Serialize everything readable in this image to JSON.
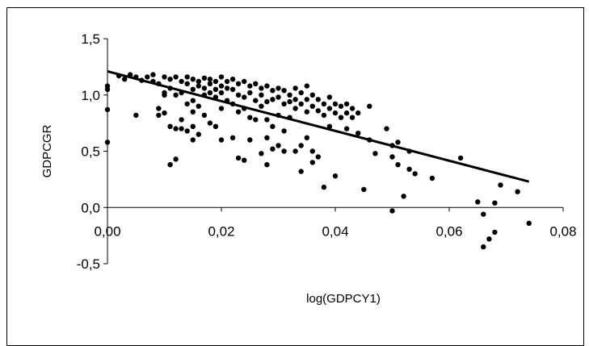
{
  "chart_data": {
    "type": "scatter",
    "title": "",
    "xlabel": "log(GDPCY1)",
    "ylabel": "GDPCGR",
    "xlim": [
      0,
      0.08
    ],
    "ylim": [
      -0.5,
      1.5
    ],
    "x_ticks": [
      "0,00",
      "0,02",
      "0,04",
      "0,06",
      "0,08"
    ],
    "y_ticks": [
      "-0,5",
      "0,0",
      "0,5",
      "1,0",
      "1,5"
    ],
    "grid": false,
    "legend": "none",
    "trendline": {
      "x": [
        0.0,
        0.074
      ],
      "y": [
        1.21,
        0.23
      ]
    },
    "series": [
      {
        "color": "#000000",
        "points": [
          [
            0.0,
            1.08
          ],
          [
            0.0,
            1.05
          ],
          [
            0.0,
            0.87
          ],
          [
            0.0,
            0.58
          ],
          [
            0.002,
            1.17
          ],
          [
            0.003,
            1.14
          ],
          [
            0.004,
            1.18
          ],
          [
            0.005,
            1.16
          ],
          [
            0.005,
            0.82
          ],
          [
            0.006,
            1.13
          ],
          [
            0.007,
            1.16
          ],
          [
            0.008,
            1.12
          ],
          [
            0.008,
            1.18
          ],
          [
            0.009,
            1.1
          ],
          [
            0.009,
            0.88
          ],
          [
            0.009,
            0.82
          ],
          [
            0.01,
            1.16
          ],
          [
            0.01,
            1.02
          ],
          [
            0.01,
            1.0
          ],
          [
            0.01,
            0.84
          ],
          [
            0.011,
            1.14
          ],
          [
            0.011,
            1.06
          ],
          [
            0.011,
            0.72
          ],
          [
            0.011,
            0.38
          ],
          [
            0.012,
            1.16
          ],
          [
            0.012,
            1.0
          ],
          [
            0.012,
            0.7
          ],
          [
            0.012,
            0.43
          ],
          [
            0.013,
            1.12
          ],
          [
            0.013,
            1.02
          ],
          [
            0.013,
            0.78
          ],
          [
            0.013,
            0.7
          ],
          [
            0.014,
            1.16
          ],
          [
            0.014,
            1.1
          ],
          [
            0.014,
            0.92
          ],
          [
            0.014,
            0.68
          ],
          [
            0.015,
            1.14
          ],
          [
            0.015,
            1.05
          ],
          [
            0.015,
            0.95
          ],
          [
            0.015,
            0.85
          ],
          [
            0.015,
            0.72
          ],
          [
            0.015,
            0.6
          ],
          [
            0.016,
            1.12
          ],
          [
            0.016,
            1.08
          ],
          [
            0.016,
            0.9
          ],
          [
            0.016,
            0.65
          ],
          [
            0.017,
            1.15
          ],
          [
            0.017,
            1.06
          ],
          [
            0.017,
            1.0
          ],
          [
            0.017,
            0.82
          ],
          [
            0.018,
            1.14
          ],
          [
            0.018,
            1.1
          ],
          [
            0.018,
            1.02
          ],
          [
            0.018,
            0.75
          ],
          [
            0.019,
            1.12
          ],
          [
            0.019,
            1.05
          ],
          [
            0.019,
            0.98
          ],
          [
            0.019,
            0.72
          ],
          [
            0.02,
            1.16
          ],
          [
            0.02,
            1.08
          ],
          [
            0.02,
            1.02
          ],
          [
            0.02,
            0.88
          ],
          [
            0.02,
            0.6
          ],
          [
            0.021,
            1.12
          ],
          [
            0.021,
            1.06
          ],
          [
            0.021,
            0.95
          ],
          [
            0.022,
            1.14
          ],
          [
            0.022,
            1.05
          ],
          [
            0.022,
            0.92
          ],
          [
            0.022,
            0.62
          ],
          [
            0.023,
            1.1
          ],
          [
            0.023,
            1.0
          ],
          [
            0.023,
            0.85
          ],
          [
            0.023,
            0.44
          ],
          [
            0.024,
            1.12
          ],
          [
            0.024,
            0.98
          ],
          [
            0.024,
            0.88
          ],
          [
            0.024,
            0.42
          ],
          [
            0.025,
            1.08
          ],
          [
            0.025,
            1.02
          ],
          [
            0.025,
            0.8
          ],
          [
            0.025,
            0.6
          ],
          [
            0.026,
            1.1
          ],
          [
            0.026,
            0.95
          ],
          [
            0.026,
            0.78
          ],
          [
            0.027,
            1.06
          ],
          [
            0.027,
            1.0
          ],
          [
            0.027,
            0.9
          ],
          [
            0.027,
            0.48
          ],
          [
            0.028,
            1.08
          ],
          [
            0.028,
            0.94
          ],
          [
            0.028,
            0.78
          ],
          [
            0.028,
            0.62
          ],
          [
            0.028,
            0.38
          ],
          [
            0.029,
            1.04
          ],
          [
            0.029,
            0.96
          ],
          [
            0.029,
            0.72
          ],
          [
            0.029,
            0.52
          ],
          [
            0.03,
            1.06
          ],
          [
            0.03,
            0.98
          ],
          [
            0.03,
            0.82
          ],
          [
            0.03,
            0.55
          ],
          [
            0.031,
            1.04
          ],
          [
            0.031,
            0.92
          ],
          [
            0.031,
            0.68
          ],
          [
            0.031,
            0.5
          ],
          [
            0.032,
            1.0
          ],
          [
            0.032,
            0.94
          ],
          [
            0.032,
            0.8
          ],
          [
            0.033,
            1.06
          ],
          [
            0.033,
            0.96
          ],
          [
            0.033,
            0.88
          ],
          [
            0.033,
            0.5
          ],
          [
            0.034,
            1.02
          ],
          [
            0.034,
            0.92
          ],
          [
            0.034,
            0.55
          ],
          [
            0.034,
            0.32
          ],
          [
            0.035,
            1.08
          ],
          [
            0.035,
            0.96
          ],
          [
            0.035,
            0.85
          ],
          [
            0.035,
            0.62
          ],
          [
            0.036,
            1.0
          ],
          [
            0.036,
            0.9
          ],
          [
            0.036,
            0.5
          ],
          [
            0.036,
            0.4
          ],
          [
            0.037,
            0.96
          ],
          [
            0.037,
            0.86
          ],
          [
            0.037,
            0.45
          ],
          [
            0.038,
            0.92
          ],
          [
            0.038,
            0.82
          ],
          [
            0.038,
            0.18
          ],
          [
            0.039,
            0.98
          ],
          [
            0.039,
            0.88
          ],
          [
            0.039,
            0.72
          ],
          [
            0.04,
            0.92
          ],
          [
            0.04,
            0.84
          ],
          [
            0.04,
            0.28
          ],
          [
            0.041,
            0.9
          ],
          [
            0.041,
            0.8
          ],
          [
            0.042,
            0.92
          ],
          [
            0.042,
            0.84
          ],
          [
            0.042,
            0.7
          ],
          [
            0.043,
            0.88
          ],
          [
            0.043,
            0.8
          ],
          [
            0.044,
            0.84
          ],
          [
            0.044,
            0.66
          ],
          [
            0.045,
            0.16
          ],
          [
            0.046,
            0.6
          ],
          [
            0.046,
            0.9
          ],
          [
            0.047,
            0.48
          ],
          [
            0.049,
            0.7
          ],
          [
            0.05,
            0.55
          ],
          [
            0.05,
            0.45
          ],
          [
            0.05,
            -0.03
          ],
          [
            0.051,
            0.58
          ],
          [
            0.051,
            0.38
          ],
          [
            0.052,
            0.1
          ],
          [
            0.053,
            0.5
          ],
          [
            0.053,
            0.34
          ],
          [
            0.054,
            0.3
          ],
          [
            0.057,
            0.26
          ],
          [
            0.062,
            0.44
          ],
          [
            0.065,
            0.05
          ],
          [
            0.066,
            -0.06
          ],
          [
            0.066,
            -0.35
          ],
          [
            0.067,
            -0.28
          ],
          [
            0.068,
            0.04
          ],
          [
            0.068,
            -0.22
          ],
          [
            0.069,
            0.2
          ],
          [
            0.072,
            0.14
          ],
          [
            0.074,
            -0.14
          ]
        ]
      }
    ]
  }
}
